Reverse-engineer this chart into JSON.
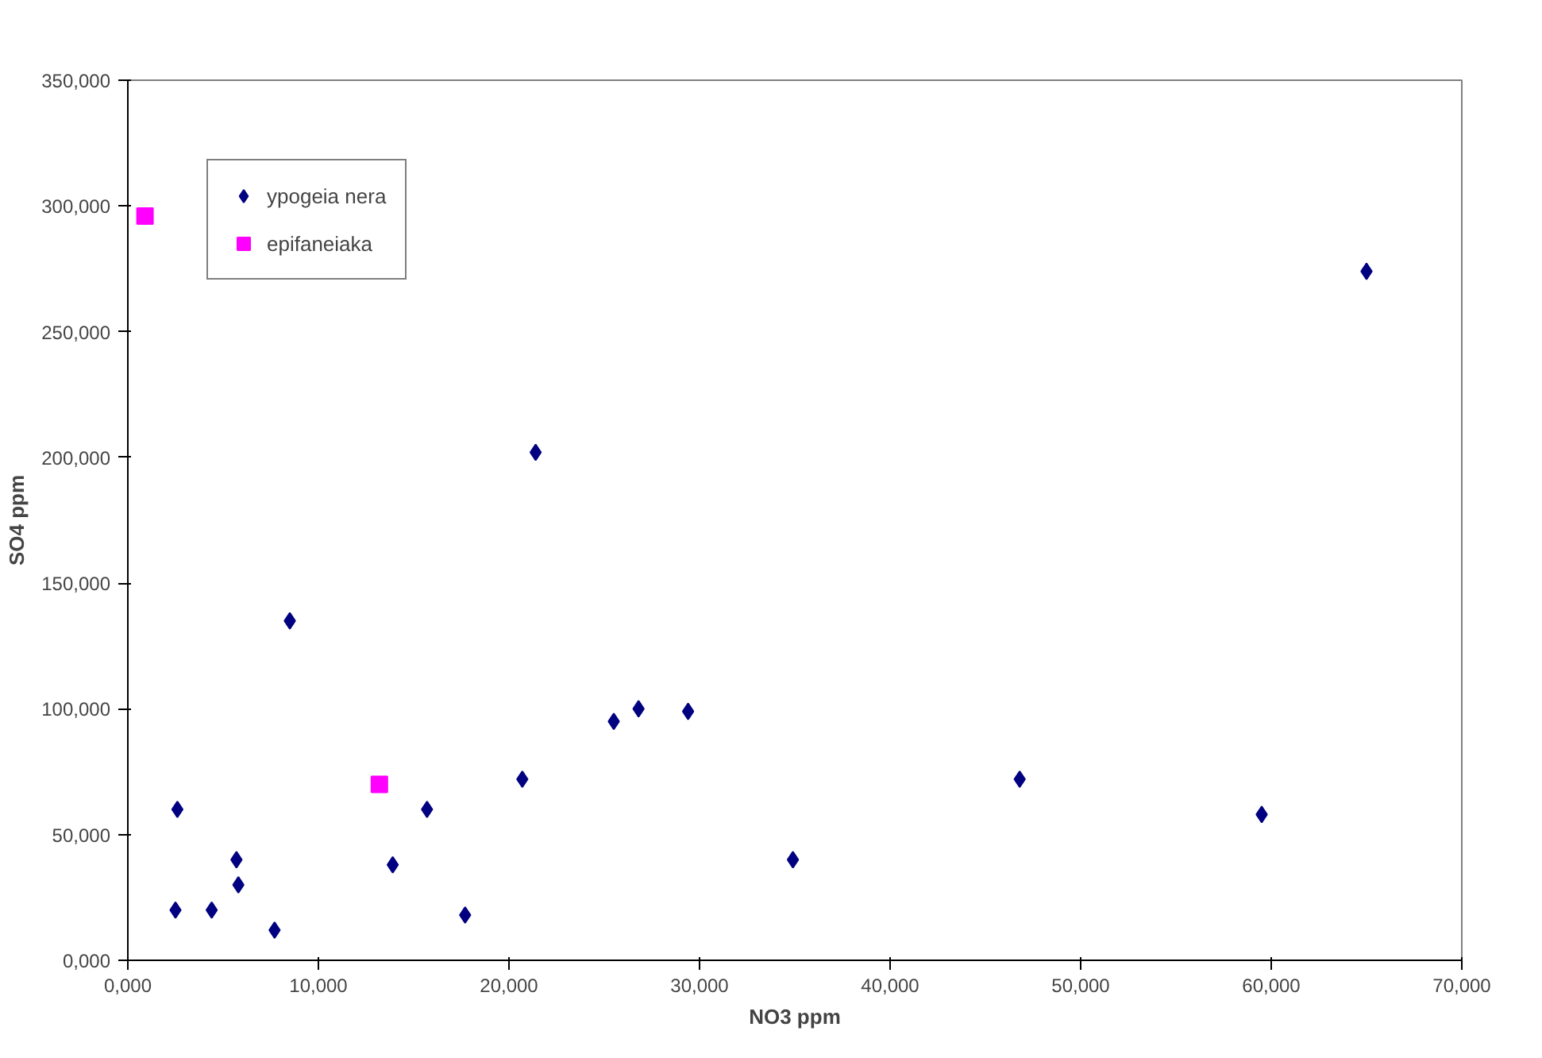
{
  "chart_data": {
    "type": "scatter",
    "xlabel": "NO3 ppm",
    "ylabel": "SO4 ppm",
    "xlim": [
      0,
      70
    ],
    "ylim": [
      0,
      350
    ],
    "xticks": [
      {
        "value": 0,
        "label": "0,000"
      },
      {
        "value": 10,
        "label": "10,000"
      },
      {
        "value": 20,
        "label": "20,000"
      },
      {
        "value": 30,
        "label": "30,000"
      },
      {
        "value": 40,
        "label": "40,000"
      },
      {
        "value": 50,
        "label": "50,000"
      },
      {
        "value": 60,
        "label": "60,000"
      },
      {
        "value": 70,
        "label": "70,000"
      }
    ],
    "yticks": [
      {
        "value": 0,
        "label": "0,000"
      },
      {
        "value": 50,
        "label": "50,000"
      },
      {
        "value": 100,
        "label": "100,000"
      },
      {
        "value": 150,
        "label": "150,000"
      },
      {
        "value": 200,
        "label": "200,000"
      },
      {
        "value": 250,
        "label": "250,000"
      },
      {
        "value": 300,
        "label": "300,000"
      },
      {
        "value": 350,
        "label": "350,000"
      }
    ],
    "grid": false,
    "legend": "top left",
    "series": [
      {
        "name": "ypogeia nera",
        "color": "#000080",
        "marker": "diamond",
        "x": [
          2.5,
          2.6,
          4.4,
          5.7,
          5.8,
          7.7,
          8.5,
          13.9,
          15.7,
          17.7,
          20.7,
          21.4,
          25.5,
          26.8,
          29.4,
          34.9,
          46.8,
          59.5,
          65.0
        ],
        "values": [
          20,
          60,
          20,
          40,
          30,
          12,
          135,
          38,
          60,
          18,
          72,
          202,
          95,
          100,
          99,
          40,
          72,
          58,
          274
        ]
      },
      {
        "name": "epifaneiaka",
        "color": "#ff00ff",
        "marker": "square",
        "x": [
          0.9,
          13.2
        ],
        "values": [
          296,
          70
        ]
      }
    ]
  }
}
